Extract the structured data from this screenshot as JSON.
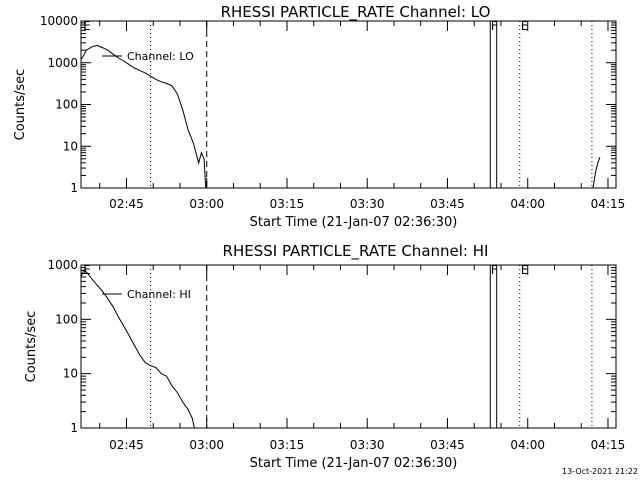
{
  "chart_data": [
    {
      "type": "line",
      "title": "RHESSI PARTICLE_RATE Channel: LO",
      "xlabel": "Start Time (21-Jan-07 02:36:30)",
      "ylabel": "Counts/sec",
      "x_unit": "minutes after 02:36:30",
      "xlim": [
        0,
        100
      ],
      "ylim": [
        1,
        10000
      ],
      "yscale": "log",
      "xticks": [
        {
          "x": 8.5,
          "label": "02:45"
        },
        {
          "x": 23.5,
          "label": "03:00"
        },
        {
          "x": 38.5,
          "label": "03:15"
        },
        {
          "x": 53.5,
          "label": "03:30"
        },
        {
          "x": 68.5,
          "label": "03:45"
        },
        {
          "x": 83.5,
          "label": "04:00"
        },
        {
          "x": 98.5,
          "label": "04:15"
        }
      ],
      "yticks": [
        {
          "y": 1,
          "label": "1"
        },
        {
          "y": 10,
          "label": "10"
        },
        {
          "y": 100,
          "label": "100"
        },
        {
          "y": 1000,
          "label": "1000"
        },
        {
          "y": 10000,
          "label": "10000"
        }
      ],
      "legend": {
        "placement": "top-left",
        "label": "Channel: LO"
      },
      "series": [
        {
          "name": "Channel: LO",
          "x": [
            0,
            0.5,
            1,
            2,
            3,
            4,
            5,
            6,
            7,
            8,
            9,
            10,
            11,
            12,
            13,
            14,
            15,
            16,
            17,
            18,
            19,
            20,
            21,
            22,
            22.5,
            23,
            23.3
          ],
          "y": [
            1200,
            1500,
            2000,
            2400,
            2600,
            2300,
            2000,
            1600,
            1300,
            1100,
            900,
            750,
            650,
            570,
            480,
            400,
            350,
            320,
            280,
            180,
            75,
            25,
            12,
            4,
            7,
            5,
            1
          ]
        },
        {
          "name": "",
          "x": [
            95.7,
            96.2,
            96.6,
            97
          ],
          "y": [
            1,
            2.5,
            4,
            5.5
          ]
        }
      ],
      "vlines": [
        {
          "x": 13,
          "style": "dotted",
          "label": ""
        },
        {
          "x": 23.5,
          "style": "dashed",
          "label": ""
        },
        {
          "x": 76.5,
          "style": "solid",
          "label": ""
        },
        {
          "x": 77.7,
          "style": "solid",
          "label": ""
        },
        {
          "x": 82,
          "style": "dotted",
          "label": ""
        },
        {
          "x": 95.5,
          "style": "dotted",
          "label": ""
        }
      ],
      "markers": [
        {
          "x": 0.4,
          "text": "E"
        },
        {
          "x": 76.6,
          "text": "F"
        },
        {
          "x": 82.2,
          "text": "E"
        }
      ]
    },
    {
      "type": "line",
      "title": "RHESSI PARTICLE_RATE Channel: HI",
      "xlabel": "Start Time (21-Jan-07 02:36:30)",
      "ylabel": "Counts/sec",
      "x_unit": "minutes after 02:36:30",
      "xlim": [
        0,
        100
      ],
      "ylim": [
        1,
        1000
      ],
      "yscale": "log",
      "xticks": [
        {
          "x": 8.5,
          "label": "02:45"
        },
        {
          "x": 23.5,
          "label": "03:00"
        },
        {
          "x": 38.5,
          "label": "03:15"
        },
        {
          "x": 53.5,
          "label": "03:30"
        },
        {
          "x": 68.5,
          "label": "03:45"
        },
        {
          "x": 83.5,
          "label": "04:00"
        },
        {
          "x": 98.5,
          "label": "04:15"
        }
      ],
      "yticks": [
        {
          "y": 1,
          "label": "1"
        },
        {
          "y": 10,
          "label": "10"
        },
        {
          "y": 100,
          "label": "100"
        },
        {
          "y": 1000,
          "label": "1000"
        }
      ],
      "legend": {
        "placement": "top-left",
        "label": "Channel: HI"
      },
      "series": [
        {
          "name": "Channel: HI",
          "x": [
            0,
            0.5,
            1,
            1.5,
            2,
            3,
            4,
            5,
            6,
            7,
            8,
            9,
            10,
            11,
            12,
            13,
            14,
            15,
            16,
            17,
            18,
            19,
            20,
            20.8,
            21.2
          ],
          "y": [
            600,
            800,
            750,
            650,
            560,
            430,
            330,
            240,
            170,
            110,
            75,
            50,
            33,
            22,
            16,
            14,
            13,
            10,
            9,
            6,
            4.5,
            3,
            2.2,
            1.5,
            1
          ]
        }
      ],
      "vlines": [
        {
          "x": 13,
          "style": "dotted",
          "label": ""
        },
        {
          "x": 23.5,
          "style": "dashed",
          "label": ""
        },
        {
          "x": 76.5,
          "style": "solid",
          "label": ""
        },
        {
          "x": 77.7,
          "style": "solid",
          "label": ""
        },
        {
          "x": 82,
          "style": "dotted",
          "label": ""
        },
        {
          "x": 95.5,
          "style": "dotted",
          "label": ""
        }
      ],
      "markers": [
        {
          "x": 0.4,
          "text": "E"
        },
        {
          "x": 76.6,
          "text": "F"
        },
        {
          "x": 82.2,
          "text": "E"
        }
      ]
    }
  ],
  "footer": {
    "timestamp": "13-Oct-2021 21:22"
  }
}
